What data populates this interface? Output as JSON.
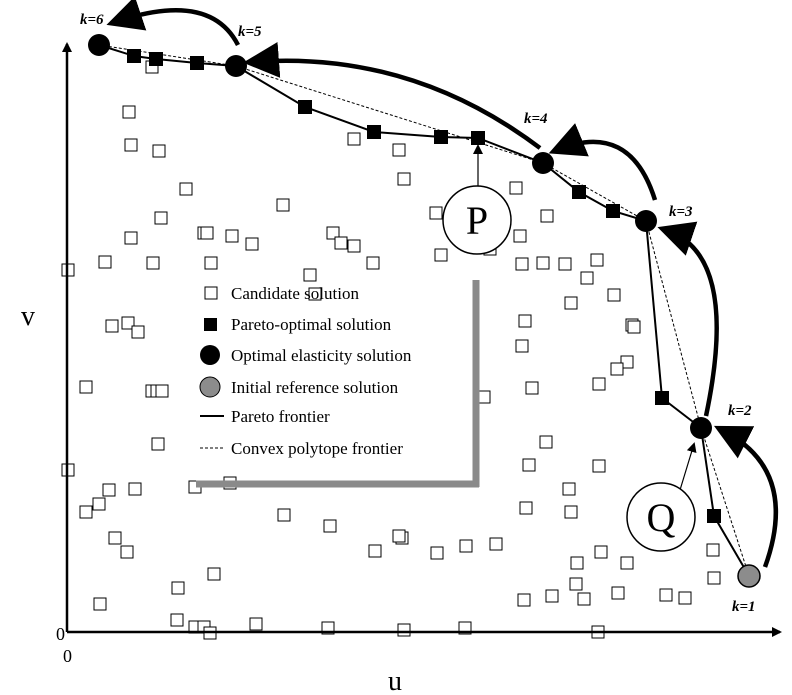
{
  "axes": {
    "x_label": "u",
    "y_label": "v",
    "origin_label": "0"
  },
  "k_labels": [
    "k=1",
    "k=2",
    "k=3",
    "k=4",
    "k=5",
    "k=6"
  ],
  "callouts": {
    "p": "P",
    "q": "Q"
  },
  "legend": [
    {
      "key": "candidate",
      "label": "Candidate solution"
    },
    {
      "key": "pareto",
      "label": "Pareto-optimal solution"
    },
    {
      "key": "elasticity",
      "label": "Optimal elasticity solution"
    },
    {
      "key": "initial",
      "label": "Initial reference solution"
    },
    {
      "key": "frontier",
      "label": "Pareto frontier"
    },
    {
      "key": "convex",
      "label": "Convex polytope frontier"
    }
  ],
  "colors": {
    "ink": "#000000",
    "initial_fill": "#8c8c8c",
    "bracket": "#8a8a8a",
    "paper": "#ffffff"
  }
}
